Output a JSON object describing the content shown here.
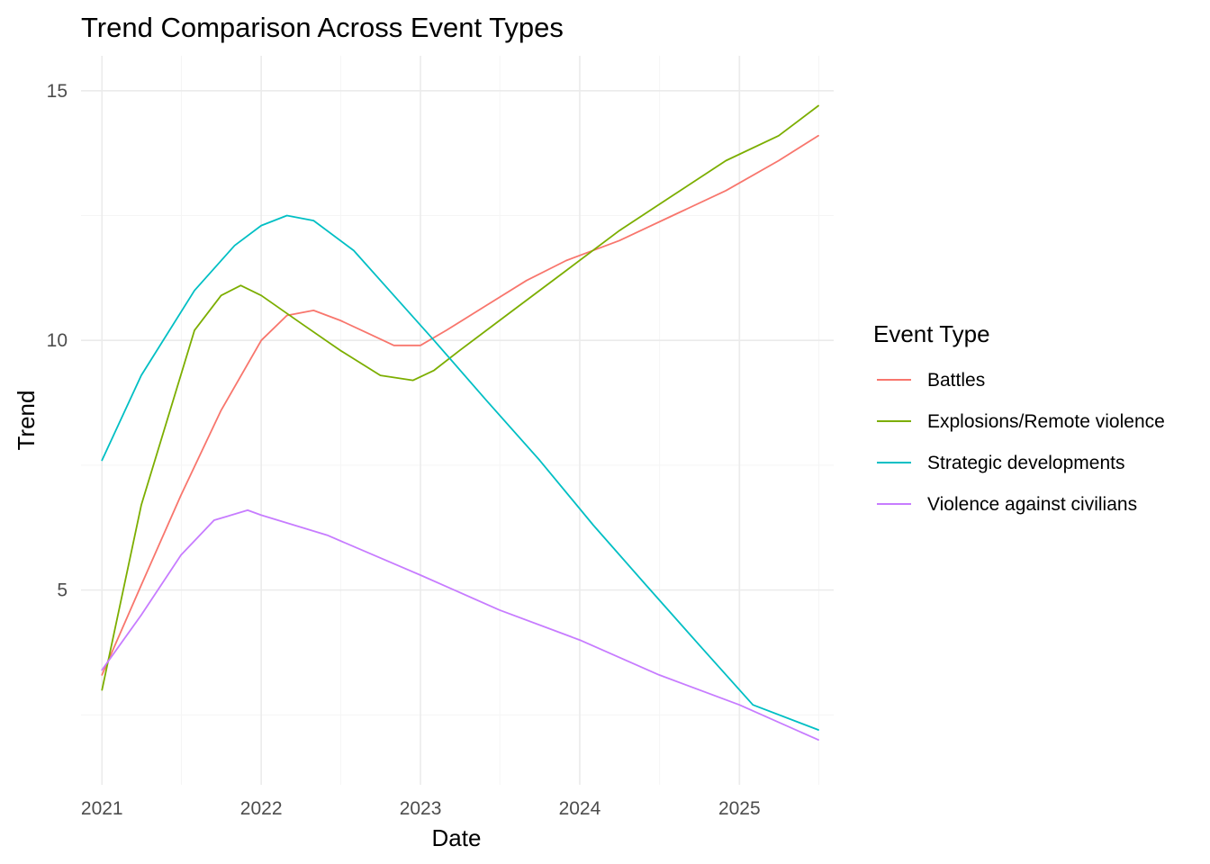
{
  "chart_data": {
    "type": "line",
    "title": "Trend Comparison Across Event Types",
    "xlabel": "Date",
    "ylabel": "Trend",
    "x_ticks": [
      "2021",
      "2022",
      "2023",
      "2024",
      "2025"
    ],
    "y_ticks": [
      "5",
      "10",
      "15"
    ],
    "xlim": [
      "2020-11-14",
      "2025-08-05"
    ],
    "ylim": [
      1.1,
      15.7
    ],
    "grid": true,
    "legend": {
      "title": "Event Type",
      "position": "right"
    },
    "series": [
      {
        "name": "Battles",
        "color": "#F8766D",
        "x": [
          "2021-01-01",
          "2021-04-01",
          "2021-07-01",
          "2021-10-01",
          "2022-01-01",
          "2022-03-01",
          "2022-05-01",
          "2022-07-01",
          "2022-09-01",
          "2022-11-01",
          "2023-01-01",
          "2023-03-01",
          "2023-06-01",
          "2023-09-01",
          "2023-12-01",
          "2024-04-01",
          "2024-08-01",
          "2024-12-01",
          "2025-04-01",
          "2025-07-01"
        ],
        "y": [
          3.3,
          5.1,
          6.9,
          8.6,
          10.0,
          10.5,
          10.6,
          10.4,
          10.15,
          9.9,
          9.9,
          10.2,
          10.7,
          11.2,
          11.6,
          12.0,
          12.5,
          13.0,
          13.6,
          14.1
        ]
      },
      {
        "name": "Explosions/Remote violence",
        "color": "#7CAE00",
        "x": [
          "2021-01-01",
          "2021-04-01",
          "2021-08-01",
          "2021-10-01",
          "2021-11-15",
          "2022-01-01",
          "2022-04-01",
          "2022-07-01",
          "2022-10-01",
          "2022-12-15",
          "2023-02-01",
          "2023-04-01",
          "2023-08-01",
          "2023-12-01",
          "2024-04-01",
          "2024-08-01",
          "2024-12-01",
          "2025-04-01",
          "2025-07-01"
        ],
        "y": [
          3.0,
          6.7,
          10.2,
          10.9,
          11.1,
          10.9,
          10.35,
          9.8,
          9.3,
          9.2,
          9.4,
          9.8,
          10.6,
          11.4,
          12.2,
          12.9,
          13.6,
          14.1,
          14.7
        ]
      },
      {
        "name": "Strategic developments",
        "color": "#00BFC4",
        "x": [
          "2021-01-01",
          "2021-04-01",
          "2021-08-01",
          "2021-11-01",
          "2022-01-01",
          "2022-03-01",
          "2022-05-01",
          "2022-08-01",
          "2022-11-01",
          "2023-02-01",
          "2023-06-01",
          "2023-10-01",
          "2024-02-01",
          "2024-06-01",
          "2024-10-01",
          "2025-02-01",
          "2025-07-01"
        ],
        "y": [
          7.6,
          9.3,
          11.0,
          11.9,
          12.3,
          12.5,
          12.4,
          11.8,
          10.9,
          10.0,
          8.8,
          7.6,
          6.3,
          5.1,
          3.9,
          2.7,
          2.2
        ]
      },
      {
        "name": "Violence against civilians",
        "color": "#C77CFF",
        "x": [
          "2021-01-01",
          "2021-04-01",
          "2021-07-01",
          "2021-09-15",
          "2021-12-01",
          "2022-01-01",
          "2022-06-01",
          "2023-01-01",
          "2023-07-01",
          "2024-01-01",
          "2024-07-01",
          "2025-01-01",
          "2025-07-01"
        ],
        "y": [
          3.4,
          4.5,
          5.7,
          6.4,
          6.6,
          6.5,
          6.1,
          5.3,
          4.6,
          4.0,
          3.3,
          2.7,
          2.0
        ]
      }
    ]
  }
}
